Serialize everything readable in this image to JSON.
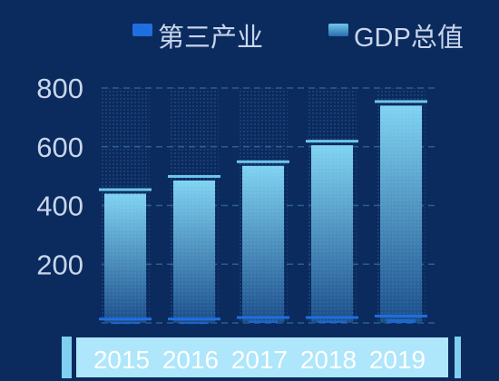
{
  "colors": {
    "background": "#0b2a5e",
    "grid": "#2c5f8c",
    "tick_text": "#c8d6ea",
    "legend_text": "#c8d6ea",
    "tertiary_series": "#1f6fe0",
    "gdp_series_top": "#7fd3f2",
    "gdp_series_bottom": "#1a4d8a",
    "cap": "#6ec6ec",
    "axis_band": "#aee6fb",
    "axis_band_edge": "#7fd0f0",
    "axis_label": "#ffffff"
  },
  "chart_data": {
    "type": "bar",
    "categories": [
      "2015",
      "2016",
      "2017",
      "2018",
      "2019"
    ],
    "series": [
      {
        "name": "第三产业",
        "values": [
          15,
          15,
          20,
          20,
          25
        ]
      },
      {
        "name": "GDP总值",
        "values": [
          440,
          485,
          535,
          605,
          740
        ]
      }
    ],
    "yticks": [
      200,
      400,
      600,
      800
    ],
    "ylim": [
      0,
      800
    ],
    "grid": true,
    "legend_position": "top-right",
    "title": "",
    "xlabel": "",
    "ylabel": ""
  }
}
